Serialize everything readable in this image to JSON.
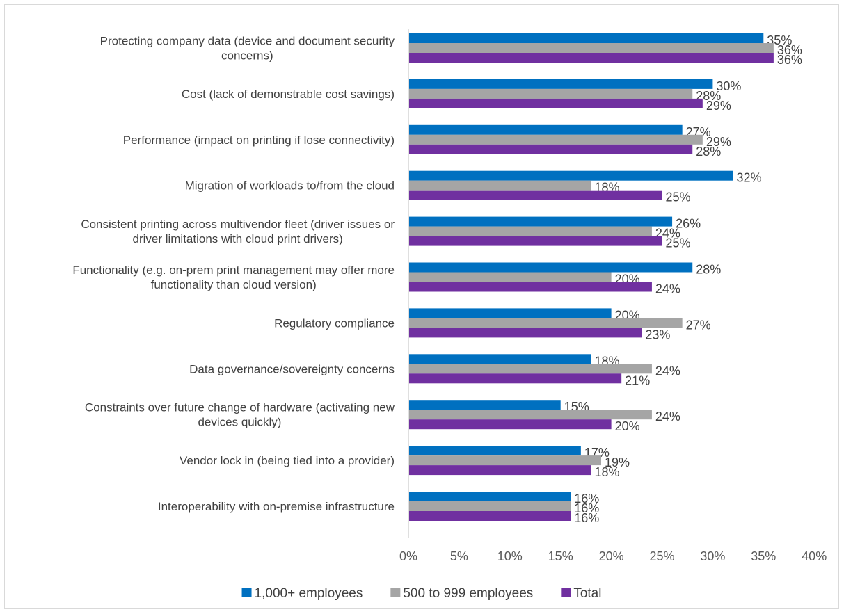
{
  "chart_data": {
    "type": "bar",
    "orientation": "horizontal",
    "categories": [
      [
        "Protecting company data (device and document security",
        "concerns)"
      ],
      [
        "Cost (lack of demonstrable cost savings)"
      ],
      [
        "Performance (impact on printing if lose connectivity)"
      ],
      [
        "Migration of workloads to/from the cloud"
      ],
      [
        "Consistent printing across multivendor fleet (driver issues or",
        "driver limitations with cloud print drivers)"
      ],
      [
        "Functionality (e.g. on-prem print management may offer more",
        "functionality than cloud version)"
      ],
      [
        "Regulatory compliance"
      ],
      [
        "Data governance/sovereignty concerns"
      ],
      [
        "Constraints over future change of hardware (activating new",
        "devices quickly)"
      ],
      [
        "Vendor lock in (being tied into a provider)"
      ],
      [
        "Interoperability with on-premise infrastructure"
      ]
    ],
    "series": [
      {
        "name": "1,000+ employees",
        "color": "#0070C0",
        "values": [
          35,
          30,
          27,
          32,
          26,
          28,
          20,
          18,
          15,
          17,
          16
        ]
      },
      {
        "name": "500 to 999 employees",
        "color": "#A5A5A5",
        "values": [
          36,
          28,
          29,
          18,
          24,
          20,
          27,
          24,
          24,
          19,
          16
        ]
      },
      {
        "name": "Total",
        "color": "#7030A0",
        "values": [
          36,
          29,
          28,
          25,
          25,
          24,
          23,
          21,
          20,
          18,
          16
        ]
      }
    ],
    "value_suffix": "%",
    "xlim": [
      0,
      40
    ],
    "xticks": [
      "0%",
      "5%",
      "10%",
      "15%",
      "20%",
      "25%",
      "30%",
      "35%",
      "40%"
    ],
    "grid": false,
    "legend_position": "bottom"
  }
}
